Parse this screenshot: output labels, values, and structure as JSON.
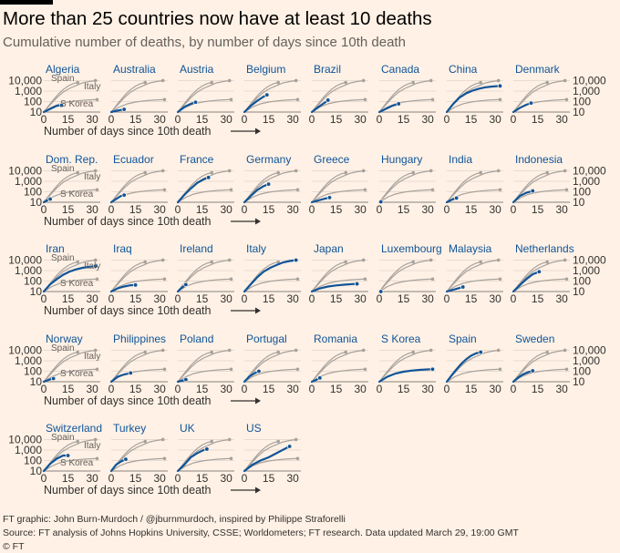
{
  "header": {
    "title": "More than 25 countries now have at least 10 deaths",
    "subtitle": "Cumulative number of deaths, by number of days since 10th death"
  },
  "footer": {
    "credit": "FT graphic: John Burn-Murdoch / @jburnmurdoch, inspired by Philippe Straforelli",
    "source": "Source: FT analysis of Johns Hopkins University, CSSE; Worldometers; FT research. Data updated March 29, 19:00 GMT",
    "logo": "© FT"
  },
  "colors": {
    "highlight": "#0f5499",
    "reference": "#a7a19c",
    "grid": "#e0d3c8",
    "text": "#33302e"
  },
  "chart_data": {
    "type": "line",
    "layout": "small-multiples",
    "x_axis": {
      "label": "Number of days since 10th death",
      "ticks": [
        0,
        15,
        30
      ],
      "range": [
        0,
        35
      ]
    },
    "y_axis": {
      "scale": "log",
      "ticks": [
        10,
        100,
        1000,
        10000
      ],
      "tick_labels": [
        "10",
        "100",
        "1,000",
        "10,000"
      ],
      "range": [
        10,
        20000
      ]
    },
    "reference_labels": {
      "spain": "Spain",
      "italy": "Italy",
      "skorea": "S Korea"
    },
    "reference_series": {
      "spain": [
        [
          0,
          10
        ],
        [
          3,
          40
        ],
        [
          6,
          150
        ],
        [
          9,
          500
        ],
        [
          12,
          1400
        ],
        [
          15,
          3000
        ],
        [
          18,
          5000
        ],
        [
          21,
          6600
        ]
      ],
      "italy": [
        [
          0,
          10
        ],
        [
          4,
          50
        ],
        [
          8,
          230
        ],
        [
          12,
          800
        ],
        [
          16,
          1800
        ],
        [
          20,
          3400
        ],
        [
          24,
          6000
        ],
        [
          28,
          8200
        ],
        [
          32,
          10000
        ]
      ],
      "skorea": [
        [
          0,
          10
        ],
        [
          5,
          30
        ],
        [
          10,
          60
        ],
        [
          15,
          90
        ],
        [
          20,
          115
        ],
        [
          25,
          135
        ],
        [
          30,
          150
        ],
        [
          33,
          155
        ]
      ]
    },
    "countries": [
      {
        "name": "Algeria",
        "points": [
          [
            0,
            10
          ],
          [
            4,
            20
          ],
          [
            8,
            40
          ],
          [
            11,
            44
          ]
        ]
      },
      {
        "name": "Australia",
        "points": [
          [
            0,
            10
          ],
          [
            3,
            13
          ],
          [
            6,
            16
          ],
          [
            8,
            18
          ]
        ]
      },
      {
        "name": "Austria",
        "points": [
          [
            0,
            10
          ],
          [
            4,
            30
          ],
          [
            8,
            60
          ],
          [
            11,
            86
          ]
        ]
      },
      {
        "name": "Belgium",
        "points": [
          [
            0,
            10
          ],
          [
            4,
            40
          ],
          [
            8,
            120
          ],
          [
            12,
            300
          ],
          [
            14,
            431
          ]
        ]
      },
      {
        "name": "Brazil",
        "points": [
          [
            0,
            10
          ],
          [
            4,
            30
          ],
          [
            8,
            80
          ],
          [
            10,
            136
          ]
        ]
      },
      {
        "name": "Canada",
        "points": [
          [
            0,
            10
          ],
          [
            4,
            20
          ],
          [
            8,
            40
          ],
          [
            12,
            61
          ]
        ]
      },
      {
        "name": "China",
        "points": [
          [
            0,
            10
          ],
          [
            4,
            60
          ],
          [
            8,
            250
          ],
          [
            12,
            600
          ],
          [
            16,
            1100
          ],
          [
            20,
            1700
          ],
          [
            24,
            2300
          ],
          [
            28,
            2700
          ],
          [
            33,
            3100
          ]
        ]
      },
      {
        "name": "Denmark",
        "points": [
          [
            0,
            10
          ],
          [
            4,
            25
          ],
          [
            8,
            50
          ],
          [
            11,
            72
          ]
        ]
      },
      {
        "name": "Dom. Rep.",
        "points": [
          [
            0,
            10
          ],
          [
            2,
            15
          ],
          [
            4,
            20
          ]
        ]
      },
      {
        "name": "Ecuador",
        "points": [
          [
            0,
            10
          ],
          [
            3,
            20
          ],
          [
            6,
            40
          ],
          [
            8,
            48
          ]
        ]
      },
      {
        "name": "France",
        "points": [
          [
            0,
            10
          ],
          [
            4,
            50
          ],
          [
            8,
            200
          ],
          [
            12,
            700
          ],
          [
            16,
            1500
          ],
          [
            19,
            2300
          ]
        ]
      },
      {
        "name": "Germany",
        "points": [
          [
            0,
            10
          ],
          [
            4,
            40
          ],
          [
            8,
            150
          ],
          [
            12,
            350
          ],
          [
            15,
            530
          ]
        ]
      },
      {
        "name": "Greece",
        "points": [
          [
            0,
            10
          ],
          [
            4,
            15
          ],
          [
            8,
            22
          ],
          [
            11,
            28
          ]
        ]
      },
      {
        "name": "Hungary",
        "points": [
          [
            0,
            10
          ],
          [
            1,
            11
          ]
        ]
      },
      {
        "name": "India",
        "points": [
          [
            0,
            10
          ],
          [
            3,
            17
          ],
          [
            6,
            25
          ]
        ]
      },
      {
        "name": "Indonesia",
        "points": [
          [
            0,
            10
          ],
          [
            4,
            40
          ],
          [
            8,
            80
          ],
          [
            12,
            120
          ]
        ]
      },
      {
        "name": "Iran",
        "points": [
          [
            0,
            10
          ],
          [
            4,
            50
          ],
          [
            8,
            150
          ],
          [
            12,
            400
          ],
          [
            16,
            800
          ],
          [
            20,
            1300
          ],
          [
            24,
            1800
          ],
          [
            28,
            2300
          ],
          [
            32,
            2640
          ]
        ]
      },
      {
        "name": "Iraq",
        "points": [
          [
            0,
            10
          ],
          [
            4,
            20
          ],
          [
            8,
            30
          ],
          [
            12,
            40
          ],
          [
            15,
            42
          ]
        ]
      },
      {
        "name": "Ireland",
        "points": [
          [
            0,
            10
          ],
          [
            2,
            20
          ],
          [
            5,
            46
          ]
        ]
      },
      {
        "name": "Italy",
        "points": [
          [
            0,
            10
          ],
          [
            4,
            50
          ],
          [
            8,
            230
          ],
          [
            12,
            800
          ],
          [
            16,
            1800
          ],
          [
            20,
            3400
          ],
          [
            24,
            6000
          ],
          [
            28,
            8200
          ],
          [
            32,
            10000
          ]
        ]
      },
      {
        "name": "Japan",
        "points": [
          [
            0,
            10
          ],
          [
            5,
            20
          ],
          [
            10,
            30
          ],
          [
            15,
            38
          ],
          [
            20,
            45
          ],
          [
            25,
            52
          ],
          [
            28,
            54
          ]
        ]
      },
      {
        "name": "Luxembourg",
        "points": [
          [
            0,
            10
          ],
          [
            1,
            10
          ]
        ]
      },
      {
        "name": "Malaysia",
        "points": [
          [
            0,
            10
          ],
          [
            4,
            15
          ],
          [
            8,
            22
          ],
          [
            10,
            27
          ]
        ]
      },
      {
        "name": "Netherlands",
        "points": [
          [
            0,
            10
          ],
          [
            4,
            40
          ],
          [
            8,
            150
          ],
          [
            12,
            450
          ],
          [
            16,
            771
          ]
        ]
      },
      {
        "name": "Norway",
        "points": [
          [
            0,
            10
          ],
          [
            3,
            15
          ],
          [
            6,
            20
          ]
        ]
      },
      {
        "name": "Philippines",
        "points": [
          [
            0,
            10
          ],
          [
            4,
            30
          ],
          [
            8,
            50
          ],
          [
            12,
            68
          ]
        ]
      },
      {
        "name": "Poland",
        "points": [
          [
            0,
            10
          ],
          [
            3,
            13
          ],
          [
            5,
            16
          ]
        ]
      },
      {
        "name": "Portugal",
        "points": [
          [
            0,
            10
          ],
          [
            3,
            30
          ],
          [
            6,
            60
          ],
          [
            9,
            100
          ]
        ]
      },
      {
        "name": "Romania",
        "points": [
          [
            0,
            10
          ],
          [
            3,
            16
          ],
          [
            5,
            23
          ]
        ]
      },
      {
        "name": "S Korea",
        "points": [
          [
            0,
            10
          ],
          [
            5,
            30
          ],
          [
            10,
            60
          ],
          [
            15,
            90
          ],
          [
            20,
            115
          ],
          [
            25,
            135
          ],
          [
            30,
            150
          ],
          [
            33,
            155
          ]
        ]
      },
      {
        "name": "Spain",
        "points": [
          [
            0,
            10
          ],
          [
            3,
            40
          ],
          [
            6,
            150
          ],
          [
            9,
            500
          ],
          [
            12,
            1400
          ],
          [
            15,
            3000
          ],
          [
            18,
            5000
          ],
          [
            21,
            6600
          ]
        ]
      },
      {
        "name": "Sweden",
        "points": [
          [
            0,
            10
          ],
          [
            3,
            25
          ],
          [
            6,
            50
          ],
          [
            9,
            80
          ],
          [
            12,
            110
          ]
        ]
      },
      {
        "name": "Switzerland",
        "points": [
          [
            0,
            10
          ],
          [
            4,
            50
          ],
          [
            8,
            150
          ],
          [
            12,
            300
          ],
          [
            15,
            300
          ]
        ]
      },
      {
        "name": "Turkey",
        "points": [
          [
            0,
            10
          ],
          [
            3,
            40
          ],
          [
            6,
            80
          ],
          [
            9,
            131
          ]
        ]
      },
      {
        "name": "UK",
        "points": [
          [
            0,
            10
          ],
          [
            4,
            40
          ],
          [
            8,
            200
          ],
          [
            12,
            500
          ],
          [
            16,
            1000
          ],
          [
            18,
            1228
          ]
        ]
      },
      {
        "name": "US",
        "points": [
          [
            0,
            10
          ],
          [
            5,
            40
          ],
          [
            10,
            100
          ],
          [
            15,
            200
          ],
          [
            20,
            500
          ],
          [
            25,
            1300
          ],
          [
            28,
            2200
          ]
        ]
      }
    ]
  }
}
